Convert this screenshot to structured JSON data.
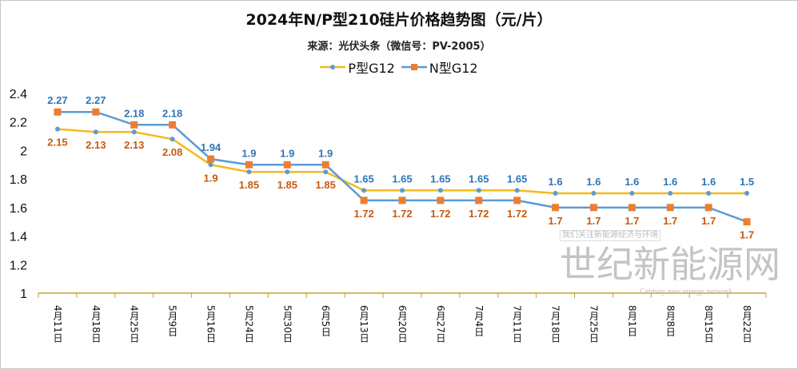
{
  "chart_data": {
    "type": "line",
    "title": "2024年N/P型210硅片价格趋势图（元/片）",
    "subtitle": "来源：光伏头条（微信号：PV-2005）",
    "categories": [
      "4月11日",
      "4月18日",
      "4月25日",
      "5月9日",
      "5月16日",
      "5月24日",
      "5月30日",
      "6月5日",
      "6月13日",
      "6月20日",
      "6月27日",
      "7月4日",
      "7月11日",
      "7月18日",
      "7月25日",
      "8月1日",
      "8月8日",
      "8月15日",
      "8月22日"
    ],
    "series": [
      {
        "name": "P型G12",
        "line_color": "#F5BA1B",
        "marker": "circle",
        "marker_color": "#5B9BD5",
        "label_color": "#C55A11",
        "values": [
          2.15,
          2.13,
          2.13,
          2.08,
          1.9,
          1.85,
          1.85,
          1.85,
          1.72,
          1.72,
          1.72,
          1.72,
          1.72,
          1.7,
          1.7,
          1.7,
          1.7,
          1.7,
          1.7
        ]
      },
      {
        "name": "N型G12",
        "line_color": "#5B9BD5",
        "marker": "square",
        "marker_color": "#ED7D31",
        "label_color": "#2E75B6",
        "values": [
          2.27,
          2.27,
          2.18,
          2.18,
          1.94,
          1.9,
          1.9,
          1.9,
          1.65,
          1.65,
          1.65,
          1.65,
          1.65,
          1.6,
          1.6,
          1.6,
          1.6,
          1.6,
          1.5
        ]
      }
    ],
    "yticks": [
      "1",
      "1.2",
      "1.4",
      "1.6",
      "1.8",
      "2",
      "2.2",
      "2.4"
    ],
    "ylim": [
      1,
      2.4
    ],
    "grid": false,
    "legend": "top-center",
    "axis_color": "#C9A227"
  },
  "watermark": {
    "main": "世纪新能源网",
    "en": "Century new energy network",
    "tag": "我们关注新能源经济与环境"
  }
}
